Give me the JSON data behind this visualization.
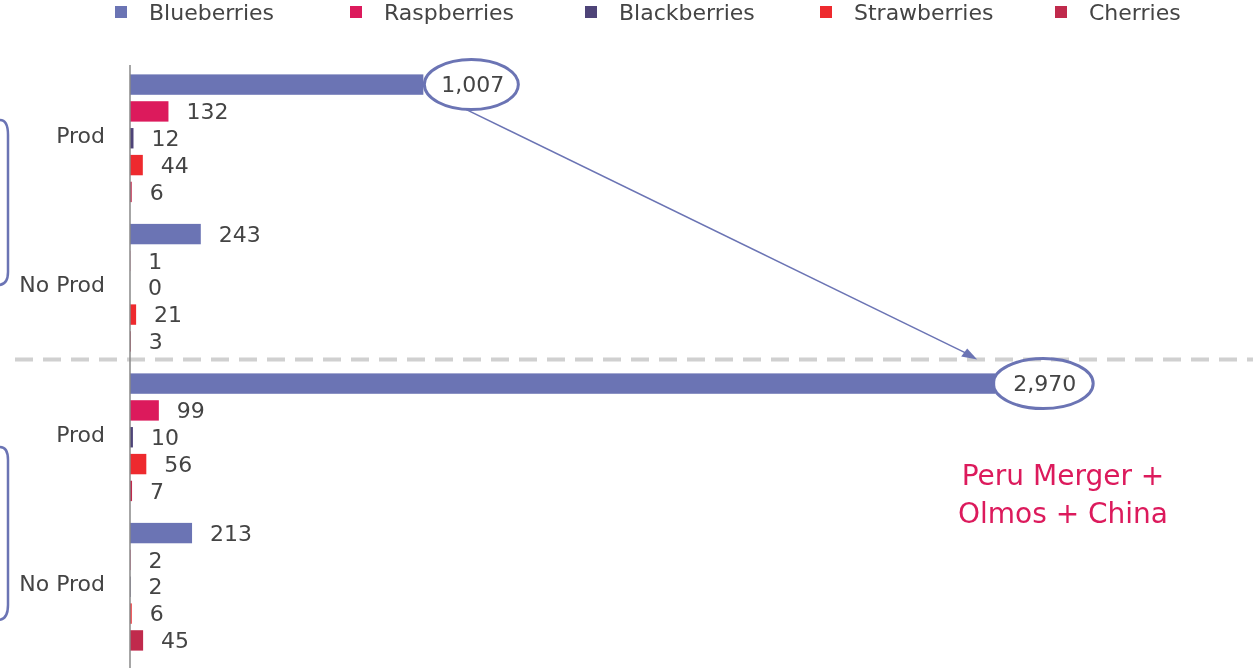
{
  "chart_data": {
    "type": "bar",
    "orientation": "horizontal",
    "categories": [
      "Prod",
      "No Prod",
      "Prod",
      "No Prod"
    ],
    "series": [
      {
        "name": "Blueberries",
        "color": "#6b74b4",
        "values": [
          1007,
          243,
          2970,
          213
        ],
        "value_labels": [
          "1,007",
          "243",
          "2,970",
          "213"
        ]
      },
      {
        "name": "Raspberries",
        "color": "#dc1a5c",
        "values": [
          132,
          1,
          99,
          2
        ],
        "value_labels": [
          "132",
          "1",
          "99",
          "2"
        ]
      },
      {
        "name": "Blackberries",
        "color": "#4e4478",
        "values": [
          12,
          0,
          10,
          2
        ],
        "value_labels": [
          "12",
          "0",
          "10",
          "2"
        ]
      },
      {
        "name": "Strawberries",
        "color": "#ee2a2e",
        "values": [
          44,
          21,
          56,
          6
        ],
        "value_labels": [
          "44",
          "21",
          "56",
          "6"
        ]
      },
      {
        "name": "Cherries",
        "color": "#c02a4c",
        "values": [
          6,
          3,
          7,
          45
        ],
        "value_labels": [
          "6",
          "3",
          "7",
          "45"
        ]
      }
    ],
    "xlim": [
      0,
      3855
    ],
    "tick_labels": "y",
    "legend": "top",
    "annotations": [
      "Peru Merger +\nOlmos + China"
    ]
  }
}
